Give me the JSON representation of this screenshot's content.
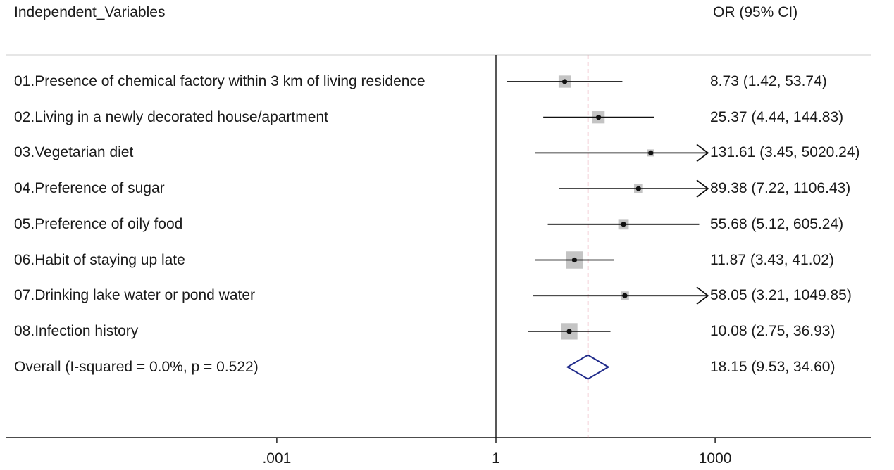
{
  "headers": {
    "left": "Independent_Variables",
    "right": "OR (95% CI)"
  },
  "chart_data": {
    "type": "forest",
    "x_scale": "log",
    "xlim": [
      1e-06,
      5000000
    ],
    "null_line": 1,
    "ticks": [
      {
        "value": 0.001,
        "label": ".001"
      },
      {
        "value": 1,
        "label": "1"
      },
      {
        "value": 1000,
        "label": "1000"
      }
    ],
    "rows": [
      {
        "label": "01.Presence of chemical factory within 3 km of living residence",
        "or": 8.73,
        "lo": 1.42,
        "hi": 53.74,
        "ci_text": "8.73 (1.42, 53.74)",
        "weight": 0.75
      },
      {
        "label": "02.Living in a newly decorated house/apartment",
        "or": 25.37,
        "lo": 4.44,
        "hi": 144.83,
        "ci_text": "25.37 (4.44, 144.83)",
        "weight": 0.75
      },
      {
        "label": "03.Vegetarian diet",
        "or": 131.61,
        "lo": 3.45,
        "hi": 5020.24,
        "ci_text": "131.61 (3.45, 5020.24)",
        "weight": 0.1,
        "clipped_right": true
      },
      {
        "label": "04.Preference of sugar",
        "or": 89.38,
        "lo": 7.22,
        "hi": 1106.43,
        "ci_text": "89.38 (7.22, 1106.43)",
        "weight": 0.4,
        "clipped_right": true
      },
      {
        "label": "05.Preference of oily food",
        "or": 55.68,
        "lo": 5.12,
        "hi": 605.24,
        "ci_text": "55.68 (5.12, 605.24)",
        "weight": 0.55
      },
      {
        "label": "06.Habit of staying up late",
        "or": 11.87,
        "lo": 3.43,
        "hi": 41.02,
        "ci_text": "11.87 (3.43, 41.02)",
        "weight": 1.5
      },
      {
        "label": "07.Drinking lake water or pond water",
        "or": 58.05,
        "lo": 3.21,
        "hi": 1049.85,
        "ci_text": "58.05 (3.21, 1049.85)",
        "weight": 0.35,
        "clipped_right": true
      },
      {
        "label": "08.Infection history",
        "or": 10.08,
        "lo": 2.75,
        "hi": 36.93,
        "ci_text": "10.08 (2.75, 36.93)",
        "weight": 1.35
      }
    ],
    "overall": {
      "label": "Overall  (I-squared = 0.0%, p = 0.522)",
      "or": 18.15,
      "lo": 9.53,
      "hi": 34.6,
      "ci_text": "18.15 (9.53, 34.60)"
    },
    "colors": {
      "box": "#c4c4c4",
      "point": "#111111",
      "ci_line": "#111111",
      "diamond": "#1f2a8a",
      "overall_line": "#d96b80"
    }
  }
}
